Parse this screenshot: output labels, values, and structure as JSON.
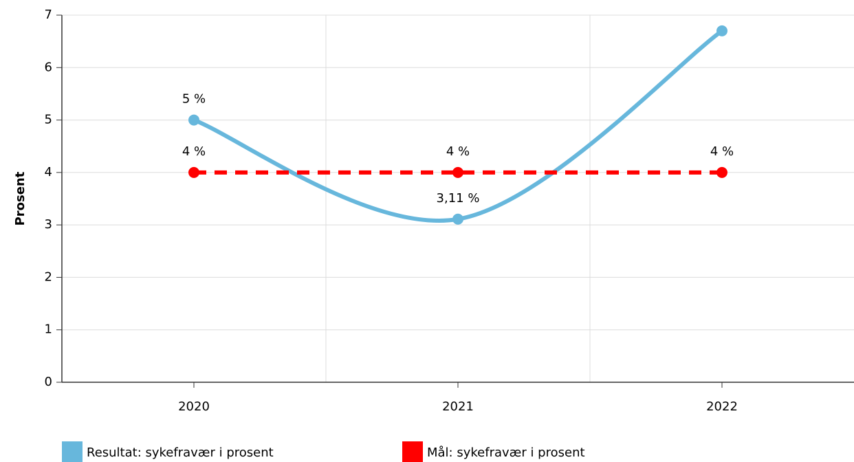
{
  "chart_data": {
    "type": "line",
    "categories": [
      "2020",
      "2021",
      "2022"
    ],
    "y_label": "Prosent",
    "series": [
      {
        "name": "Resultat: sykefravær i prosent",
        "color": "#67b7dc",
        "style": "solid",
        "smooth": true,
        "values": [
          5,
          3.11,
          6.7
        ],
        "value_labels": [
          "5 %",
          "3,11 %",
          null
        ]
      },
      {
        "name": "Mål: sykefravær i prosent",
        "color": "#ff0000",
        "style": "dashed",
        "smooth": false,
        "values": [
          4,
          4,
          4
        ],
        "value_labels": [
          "4 %",
          "4 %",
          "4 %"
        ]
      }
    ],
    "ylim": [
      0,
      7
    ],
    "yticks": [
      0,
      1,
      2,
      3,
      4,
      5,
      6,
      7
    ],
    "grid": true,
    "legend": "bottom"
  }
}
